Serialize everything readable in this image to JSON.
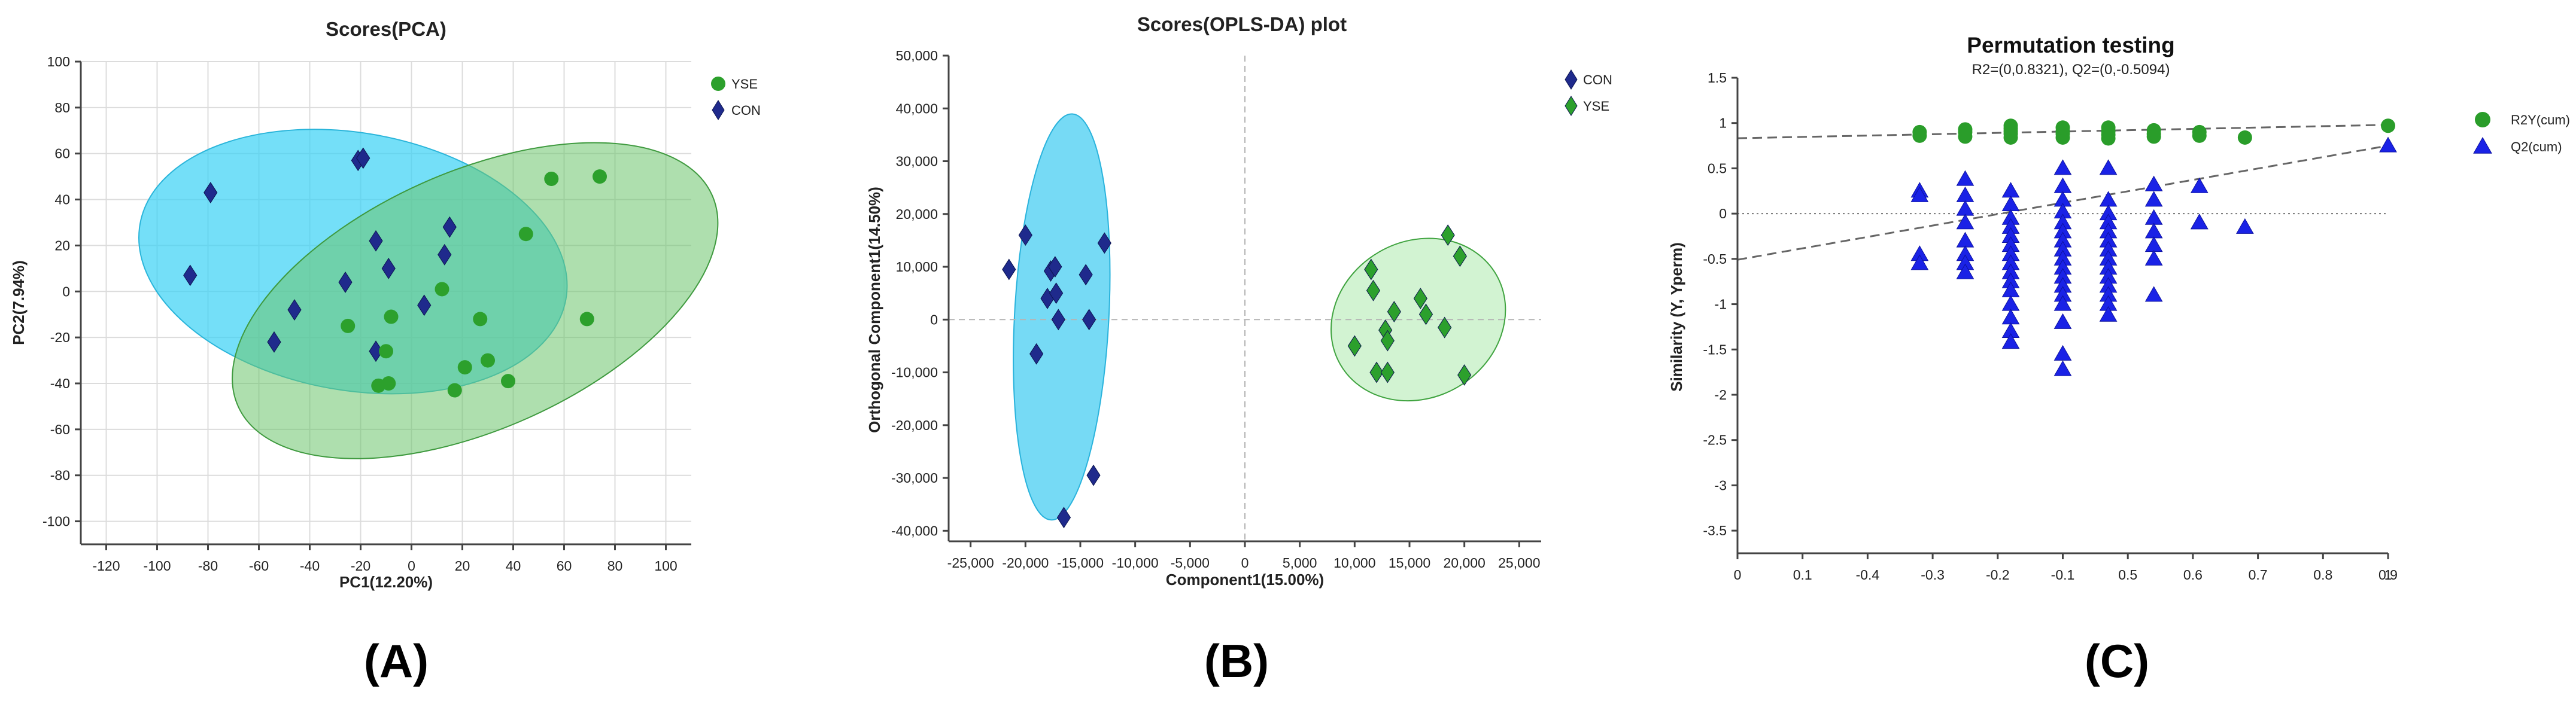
{
  "panels": {
    "a": {
      "label": "(A)"
    },
    "b": {
      "label": "(B)"
    },
    "c": {
      "label": "(C)"
    }
  },
  "colors": {
    "yse_marker": "#2ca02c",
    "con_marker": "#1f2a8c",
    "pca_con_ellipse": "#3fd3f5",
    "pca_yse_ellipse": "#6cc46c",
    "opls_con_ellipse": "#48cdf2",
    "opls_yse_ellipse": "#8fe08f",
    "r2_marker": "#2a9d2a",
    "q2_marker": "#1a22e6"
  },
  "chart_data": [
    {
      "type": "scatter",
      "title": "Scores(PCA)",
      "xlabel": "PC1(12.20%)",
      "ylabel": "PC2(7.94%)",
      "xlim": [
        -130,
        110
      ],
      "ylim": [
        -110,
        100
      ],
      "xticks": [
        -120,
        -100,
        -80,
        -60,
        -40,
        -20,
        0,
        20,
        40,
        60,
        80,
        100
      ],
      "yticks": [
        -100,
        -80,
        -60,
        -40,
        -20,
        0,
        20,
        40,
        60,
        80,
        100
      ],
      "grid": true,
      "legend_position": "top-right",
      "series": [
        {
          "name": "YSE",
          "marker": "circle",
          "points": [
            [
              55,
              49
            ],
            [
              74,
              50
            ],
            [
              45,
              25
            ],
            [
              -25,
              -15
            ],
            [
              -8,
              -11
            ],
            [
              -10,
              -26
            ],
            [
              -13,
              -41
            ],
            [
              -9,
              -40
            ],
            [
              12,
              1
            ],
            [
              27,
              -12
            ],
            [
              30,
              -30
            ],
            [
              21,
              -33
            ],
            [
              17,
              -43
            ],
            [
              38,
              -39
            ],
            [
              69,
              -12
            ]
          ]
        },
        {
          "name": "CON",
          "marker": "diamond",
          "points": [
            [
              -79,
              43
            ],
            [
              -87,
              7
            ],
            [
              -54,
              -22
            ],
            [
              -46,
              -8
            ],
            [
              -21,
              57
            ],
            [
              -19,
              58
            ],
            [
              -26,
              4
            ],
            [
              -14,
              22
            ],
            [
              -9,
              10
            ],
            [
              -14,
              -26
            ],
            [
              5,
              -6
            ],
            [
              13,
              16
            ],
            [
              15,
              28
            ]
          ]
        }
      ],
      "ellipses": [
        {
          "group": "CON",
          "cx": -23,
          "cy": 13,
          "rx": 85,
          "ry": 56,
          "angle_deg": -10
        },
        {
          "group": "YSE",
          "cx": 25,
          "cy": -4,
          "rx": 102,
          "ry": 56,
          "angle_deg": 24
        }
      ]
    },
    {
      "type": "scatter",
      "title": "Scores(OPLS-DA) plot",
      "xlabel": "Component1(15.00%)",
      "ylabel": "Orthogonal Component1(14.50%)",
      "xlim": [
        -27000,
        27000
      ],
      "ylim": [
        -42000,
        50000
      ],
      "xticks": [
        -25000,
        -20000,
        -15000,
        -10000,
        -5000,
        0,
        5000,
        10000,
        15000,
        20000,
        25000
      ],
      "xtick_labels": [
        "-25,000",
        "-20,000",
        "-15,000",
        "-10,000",
        "-5,000",
        "0",
        "5,000",
        "10,000",
        "15,000",
        "20,000",
        "25,000"
      ],
      "yticks": [
        -40000,
        -30000,
        -20000,
        -10000,
        0,
        10000,
        20000,
        30000,
        40000,
        50000
      ],
      "ytick_labels": [
        "-40,000",
        "-30,000",
        "-20,000",
        "-10,000",
        "0",
        "10,000",
        "20,000",
        "30,000",
        "40,000",
        "50,000"
      ],
      "grid": false,
      "legend_position": "top-right",
      "series": [
        {
          "name": "CON",
          "marker": "diamond",
          "points": [
            [
              -21500,
              9500
            ],
            [
              -20000,
              16000
            ],
            [
              -19000,
              -6500
            ],
            [
              -18000,
              4000
            ],
            [
              -17700,
              9200
            ],
            [
              -17300,
              10000
            ],
            [
              -17200,
              5000
            ],
            [
              -17000,
              0
            ],
            [
              -16500,
              -37500
            ],
            [
              -14500,
              8500
            ],
            [
              -14200,
              0
            ],
            [
              -13800,
              -29500
            ],
            [
              -12800,
              14500
            ]
          ]
        },
        {
          "name": "YSE",
          "marker": "diamond",
          "points": [
            [
              10000,
              -5000
            ],
            [
              11500,
              9500
            ],
            [
              11700,
              5500
            ],
            [
              12000,
              -10000
            ],
            [
              12800,
              -2000
            ],
            [
              13000,
              -4000
            ],
            [
              13000,
              -10000
            ],
            [
              13600,
              1500
            ],
            [
              16000,
              4000
            ],
            [
              16500,
              1000
            ],
            [
              18200,
              -1500
            ],
            [
              18500,
              16000
            ],
            [
              19600,
              12000
            ],
            [
              20000,
              -10500
            ]
          ]
        }
      ],
      "ellipses": [
        {
          "group": "CON",
          "cx": -16700,
          "cy": 500,
          "rx": 4300,
          "ry": 38500,
          "angle_deg": -3
        },
        {
          "group": "YSE",
          "cx": 15800,
          "cy": 0,
          "rx": 8200,
          "ry": 14800,
          "angle_deg": 30
        }
      ]
    },
    {
      "type": "scatter",
      "title": "Permutation testing",
      "subtitle": "R2=(0,0.8321), Q2=(0,-0.5094)",
      "xlabel": "",
      "ylabel": "Similarity (Y, Yperm)",
      "xlim": [
        0,
        1
      ],
      "ylim": [
        -3.75,
        1.5
      ],
      "xtick_labels": [
        "0",
        "0.1",
        "-0.4",
        "-0.3",
        "-0.2",
        "-0.1",
        "0.5",
        "0.6",
        "0.7",
        "0.8",
        "0.9",
        "1"
      ],
      "yticks": [
        1.5,
        1,
        0.5,
        0,
        -0.5,
        -1,
        -1.5,
        -2,
        -2.5,
        -3,
        -3.5
      ],
      "grid": false,
      "legend_position": "right",
      "zero_line": 0,
      "regression_lines": [
        {
          "name": "R2Y",
          "x": [
            0,
            1
          ],
          "y": [
            0.8321,
            0.98
          ]
        },
        {
          "name": "Q2",
          "x": [
            0,
            1
          ],
          "y": [
            -0.5094,
            0.75
          ]
        }
      ],
      "series": [
        {
          "name": "R2Y(cum)",
          "marker": "circle",
          "points": [
            [
              0.28,
              0.86
            ],
            [
              0.28,
              0.9
            ],
            [
              0.35,
              0.85
            ],
            [
              0.35,
              0.9
            ],
            [
              0.35,
              0.93
            ],
            [
              0.42,
              0.84
            ],
            [
              0.42,
              0.88
            ],
            [
              0.42,
              0.91
            ],
            [
              0.42,
              0.94
            ],
            [
              0.42,
              0.97
            ],
            [
              0.5,
              0.84
            ],
            [
              0.5,
              0.88
            ],
            [
              0.5,
              0.91
            ],
            [
              0.5,
              0.95
            ],
            [
              0.57,
              0.83
            ],
            [
              0.57,
              0.87
            ],
            [
              0.57,
              0.91
            ],
            [
              0.57,
              0.95
            ],
            [
              0.64,
              0.85
            ],
            [
              0.64,
              0.88
            ],
            [
              0.64,
              0.92
            ],
            [
              0.71,
              0.86
            ],
            [
              0.71,
              0.9
            ],
            [
              0.78,
              0.84
            ],
            [
              1,
              0.97
            ]
          ]
        },
        {
          "name": "Q2(cum)",
          "marker": "triangle",
          "points": [
            [
              0.28,
              0.25
            ],
            [
              0.28,
              0.2
            ],
            [
              0.28,
              -0.45
            ],
            [
              0.28,
              -0.55
            ],
            [
              0.35,
              0.38
            ],
            [
              0.35,
              0.2
            ],
            [
              0.35,
              0.05
            ],
            [
              0.35,
              -0.1
            ],
            [
              0.35,
              -0.3
            ],
            [
              0.35,
              -0.45
            ],
            [
              0.35,
              -0.55
            ],
            [
              0.35,
              -0.65
            ],
            [
              0.42,
              0.25
            ],
            [
              0.42,
              0.1
            ],
            [
              0.42,
              -0.05
            ],
            [
              0.42,
              -0.15
            ],
            [
              0.42,
              -0.25
            ],
            [
              0.42,
              -0.35
            ],
            [
              0.42,
              -0.45
            ],
            [
              0.42,
              -0.55
            ],
            [
              0.42,
              -0.65
            ],
            [
              0.42,
              -0.75
            ],
            [
              0.42,
              -0.85
            ],
            [
              0.42,
              -1.0
            ],
            [
              0.42,
              -1.15
            ],
            [
              0.42,
              -1.3
            ],
            [
              0.42,
              -1.42
            ],
            [
              0.5,
              0.5
            ],
            [
              0.5,
              0.3
            ],
            [
              0.5,
              0.15
            ],
            [
              0.5,
              0.02
            ],
            [
              0.5,
              -0.1
            ],
            [
              0.5,
              -0.2
            ],
            [
              0.5,
              -0.3
            ],
            [
              0.5,
              -0.4
            ],
            [
              0.5,
              -0.5
            ],
            [
              0.5,
              -0.6
            ],
            [
              0.5,
              -0.7
            ],
            [
              0.5,
              -0.8
            ],
            [
              0.5,
              -0.9
            ],
            [
              0.5,
              -1.0
            ],
            [
              0.5,
              -1.2
            ],
            [
              0.5,
              -1.55
            ],
            [
              0.5,
              -1.72
            ],
            [
              0.57,
              0.5
            ],
            [
              0.57,
              0.15
            ],
            [
              0.57,
              0.0
            ],
            [
              0.57,
              -0.1
            ],
            [
              0.57,
              -0.2
            ],
            [
              0.57,
              -0.3
            ],
            [
              0.57,
              -0.4
            ],
            [
              0.57,
              -0.5
            ],
            [
              0.57,
              -0.6
            ],
            [
              0.57,
              -0.7
            ],
            [
              0.57,
              -0.8
            ],
            [
              0.57,
              -0.9
            ],
            [
              0.57,
              -1.0
            ],
            [
              0.57,
              -1.12
            ],
            [
              0.64,
              0.32
            ],
            [
              0.64,
              0.15
            ],
            [
              0.64,
              -0.05
            ],
            [
              0.64,
              -0.2
            ],
            [
              0.64,
              -0.35
            ],
            [
              0.64,
              -0.5
            ],
            [
              0.64,
              -0.9
            ],
            [
              0.71,
              0.3
            ],
            [
              0.71,
              -0.1
            ],
            [
              0.71,
              -0.1
            ],
            [
              0.78,
              -0.15
            ],
            [
              1,
              0.75
            ]
          ]
        }
      ]
    }
  ]
}
